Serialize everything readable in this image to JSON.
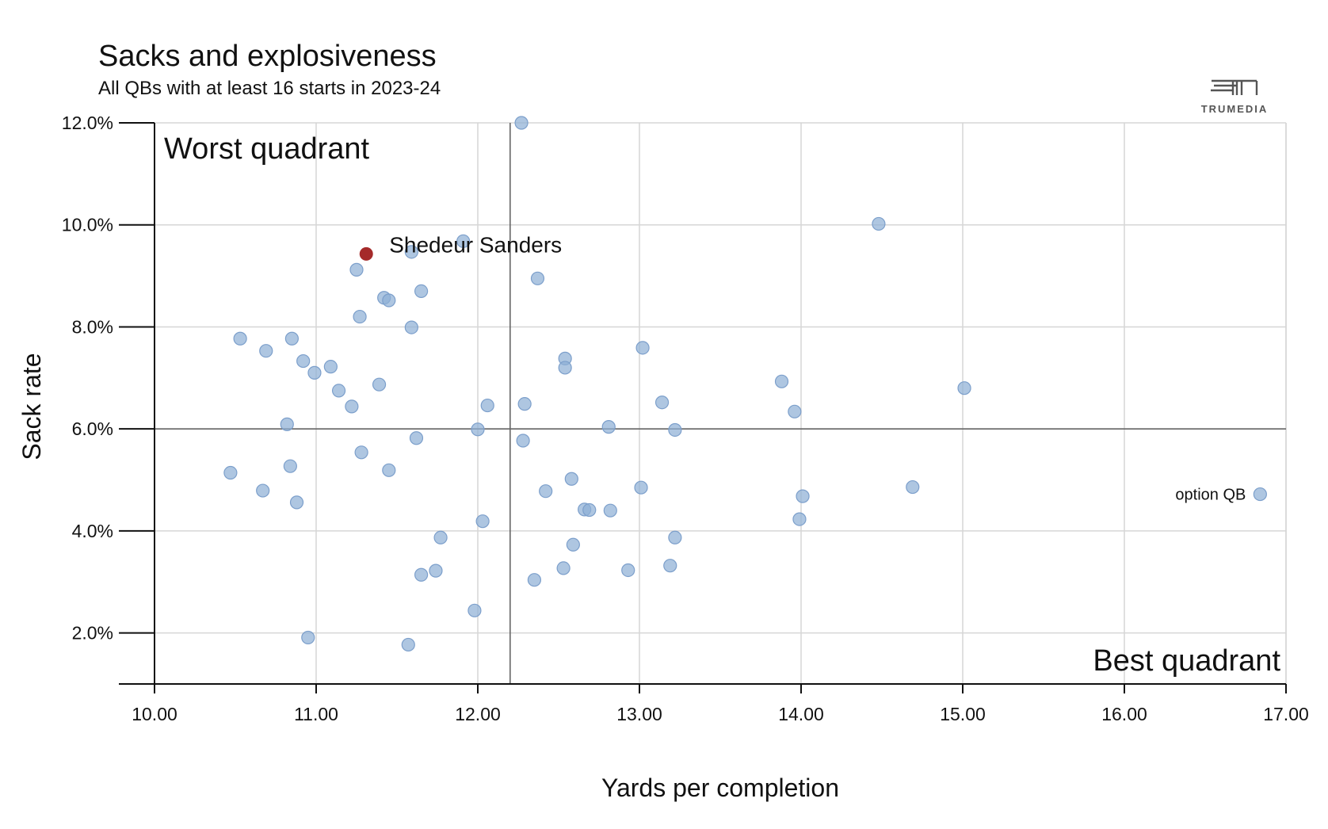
{
  "chart_data": {
    "type": "scatter",
    "title": "Sacks and explosiveness",
    "subtitle": "All QBs with at least 16 starts in 2023-24",
    "xlabel": "Yards per completion",
    "ylabel": "Sack rate",
    "xlim": [
      10.0,
      17.0
    ],
    "ylim": [
      1.0,
      12.0
    ],
    "x_ticks": [
      "10.00",
      "11.00",
      "12.00",
      "13.00",
      "14.00",
      "15.00",
      "16.00",
      "17.00"
    ],
    "y_ticks": [
      "2.0%",
      "4.0%",
      "6.0%",
      "8.0%",
      "10.0%",
      "12.0%"
    ],
    "grid": true,
    "reference_lines": {
      "x": 12.2,
      "y": 6.0
    },
    "quadrant_labels": {
      "top_left": "Worst quadrant",
      "bottom_right": "Best quadrant"
    },
    "point_color": "#8fb0d6",
    "highlight_color": "#a52a2a",
    "highlight": {
      "name": "Shedeur Sanders",
      "x": 11.31,
      "y": 9.43
    },
    "annotations": [
      {
        "text": "option QB",
        "x": 16.84,
        "y": 4.72
      }
    ],
    "points": [
      [
        12.27,
        12.0
      ],
      [
        14.48,
        10.02
      ],
      [
        11.91,
        9.68
      ],
      [
        11.59,
        9.47
      ],
      [
        11.25,
        9.12
      ],
      [
        12.37,
        8.95
      ],
      [
        11.65,
        8.7
      ],
      [
        11.42,
        8.57
      ],
      [
        11.45,
        8.52
      ],
      [
        11.27,
        8.2
      ],
      [
        11.59,
        7.99
      ],
      [
        10.53,
        7.77
      ],
      [
        10.85,
        7.77
      ],
      [
        10.69,
        7.53
      ],
      [
        13.02,
        7.59
      ],
      [
        12.54,
        7.38
      ],
      [
        12.54,
        7.2
      ],
      [
        10.92,
        7.33
      ],
      [
        11.09,
        7.22
      ],
      [
        10.99,
        7.1
      ],
      [
        13.88,
        6.93
      ],
      [
        11.39,
        6.87
      ],
      [
        15.01,
        6.8
      ],
      [
        11.14,
        6.75
      ],
      [
        13.14,
        6.52
      ],
      [
        12.06,
        6.46
      ],
      [
        12.29,
        6.49
      ],
      [
        11.22,
        6.44
      ],
      [
        13.96,
        6.34
      ],
      [
        10.82,
        6.09
      ],
      [
        12.81,
        6.04
      ],
      [
        12.0,
        5.99
      ],
      [
        13.22,
        5.98
      ],
      [
        11.62,
        5.82
      ],
      [
        12.28,
        5.77
      ],
      [
        11.28,
        5.54
      ],
      [
        10.84,
        5.27
      ],
      [
        11.45,
        5.19
      ],
      [
        10.47,
        5.14
      ],
      [
        12.58,
        5.02
      ],
      [
        13.01,
        4.85
      ],
      [
        14.69,
        4.86
      ],
      [
        10.67,
        4.79
      ],
      [
        12.42,
        4.78
      ],
      [
        14.01,
        4.68
      ],
      [
        10.88,
        4.56
      ],
      [
        12.66,
        4.42
      ],
      [
        12.69,
        4.41
      ],
      [
        12.82,
        4.4
      ],
      [
        13.99,
        4.23
      ],
      [
        12.03,
        4.19
      ],
      [
        11.77,
        3.87
      ],
      [
        13.22,
        3.87
      ],
      [
        12.59,
        3.73
      ],
      [
        13.19,
        3.32
      ],
      [
        12.53,
        3.27
      ],
      [
        12.93,
        3.23
      ],
      [
        11.74,
        3.22
      ],
      [
        11.65,
        3.14
      ],
      [
        12.35,
        3.04
      ],
      [
        11.98,
        2.44
      ],
      [
        10.95,
        1.91
      ],
      [
        11.57,
        1.77
      ],
      [
        16.84,
        4.72
      ]
    ]
  },
  "branding": {
    "logo_text": "TRUMEDIA"
  }
}
